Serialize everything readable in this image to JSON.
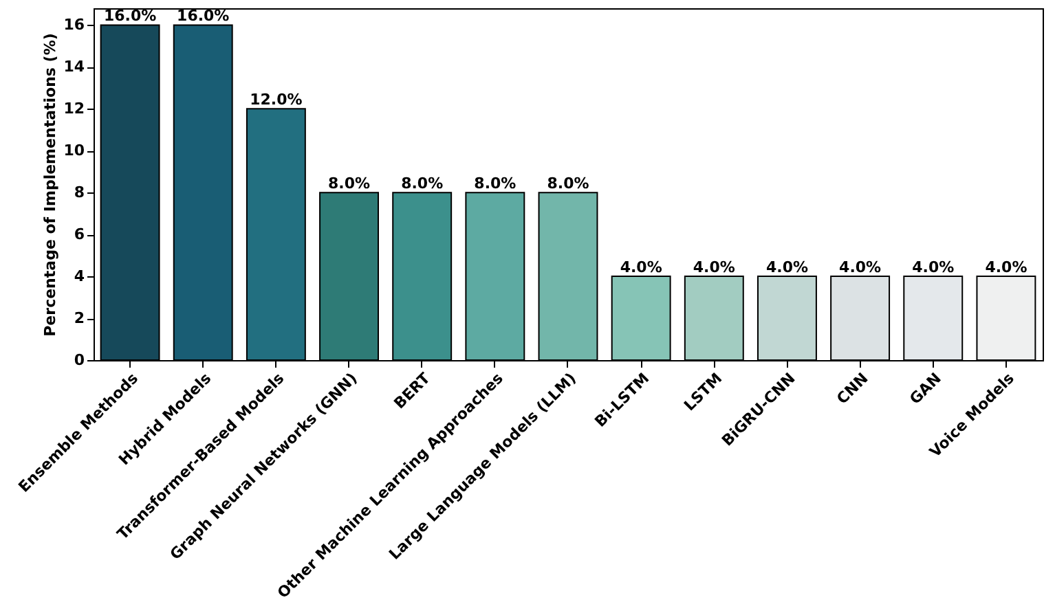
{
  "chart_data": {
    "type": "bar",
    "ylabel": "Percentage of Implementations (%)",
    "categories": [
      "Ensemble Methods",
      "Hybrid Models",
      "Transformer-Based Models",
      "Graph Neural Networks (GNN)",
      "BERT",
      "Other Machine Learning Approaches",
      "Large Language Models (LLM)",
      "Bi-LSTM",
      "LSTM",
      "BiGRU-CNN",
      "CNN",
      "GAN",
      "Voice Models"
    ],
    "values": [
      16,
      16,
      12,
      8,
      8,
      8,
      8,
      4,
      4,
      4,
      4,
      4,
      4
    ],
    "value_labels": [
      "16.0%",
      "16.0%",
      "12.0%",
      "8.0%",
      "8.0%",
      "8.0%",
      "8.0%",
      "4.0%",
      "4.0%",
      "4.0%",
      "4.0%",
      "4.0%",
      "4.0%"
    ],
    "colors": [
      "#16495a",
      "#195d74",
      "#226f80",
      "#2e7b76",
      "#3c908c",
      "#5daaa2",
      "#72b6aa",
      "#86c4b6",
      "#a2ccc1",
      "#c1d7d3",
      "#dce2e4",
      "#e4e8eb",
      "#eff0f0"
    ],
    "ylim": [
      0,
      16.8
    ],
    "yticks": [
      0,
      2,
      4,
      6,
      8,
      10,
      12,
      14,
      16
    ],
    "grid": false
  }
}
